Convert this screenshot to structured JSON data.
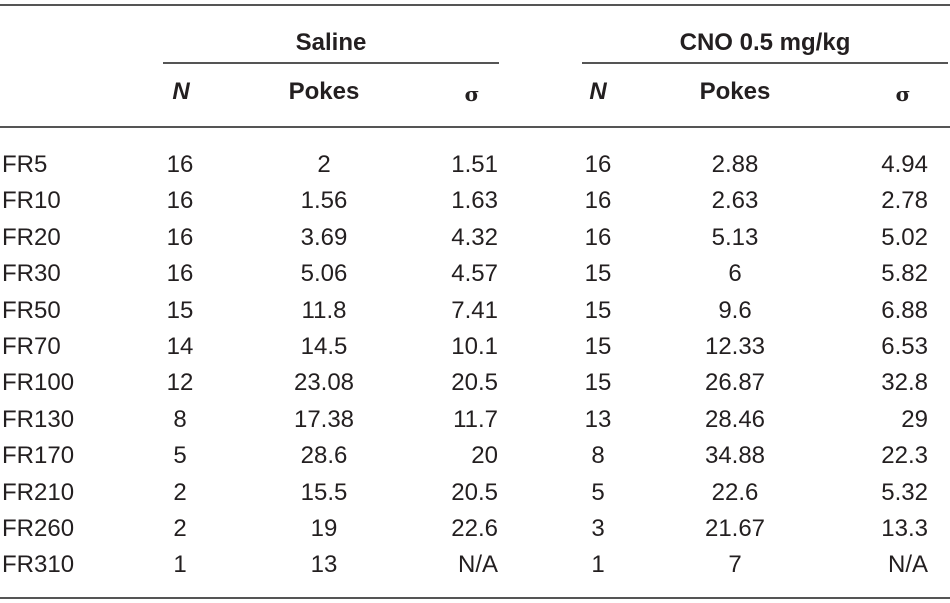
{
  "groups": {
    "saline": "Saline",
    "cno": "CNO 0.5 mg/kg"
  },
  "columns": {
    "n": "N",
    "pokes": "Pokes",
    "sigma": "σ"
  },
  "rows": [
    {
      "label": "FR5",
      "saline": [
        "16",
        "2",
        "1.51"
      ],
      "cno": [
        "16",
        "2.88",
        "4.94"
      ]
    },
    {
      "label": "FR10",
      "saline": [
        "16",
        "1.56",
        "1.63"
      ],
      "cno": [
        "16",
        "2.63",
        "2.78"
      ]
    },
    {
      "label": "FR20",
      "saline": [
        "16",
        "3.69",
        "4.32"
      ],
      "cno": [
        "16",
        "5.13",
        "5.02"
      ]
    },
    {
      "label": "FR30",
      "saline": [
        "16",
        "5.06",
        "4.57"
      ],
      "cno": [
        "15",
        "6",
        "5.82"
      ]
    },
    {
      "label": "FR50",
      "saline": [
        "15",
        "11.8",
        "7.41"
      ],
      "cno": [
        "15",
        "9.6",
        "6.88"
      ]
    },
    {
      "label": "FR70",
      "saline": [
        "14",
        "14.5",
        "10.1"
      ],
      "cno": [
        "15",
        "12.33",
        "6.53"
      ]
    },
    {
      "label": "FR100",
      "saline": [
        "12",
        "23.08",
        "20.5"
      ],
      "cno": [
        "15",
        "26.87",
        "32.8"
      ]
    },
    {
      "label": "FR130",
      "saline": [
        "8",
        "17.38",
        "11.7"
      ],
      "cno": [
        "13",
        "28.46",
        "29"
      ]
    },
    {
      "label": "FR170",
      "saline": [
        "5",
        "28.6",
        "20"
      ],
      "cno": [
        "8",
        "34.88",
        "22.3"
      ]
    },
    {
      "label": "FR210",
      "saline": [
        "2",
        "15.5",
        "20.5"
      ],
      "cno": [
        "5",
        "22.6",
        "5.32"
      ]
    },
    {
      "label": "FR260",
      "saline": [
        "2",
        "19",
        "22.6"
      ],
      "cno": [
        "3",
        "21.67",
        "13.3"
      ]
    },
    {
      "label": "FR310",
      "saline": [
        "1",
        "13",
        "N/A"
      ],
      "cno": [
        "1",
        "7",
        "N/A"
      ]
    }
  ]
}
